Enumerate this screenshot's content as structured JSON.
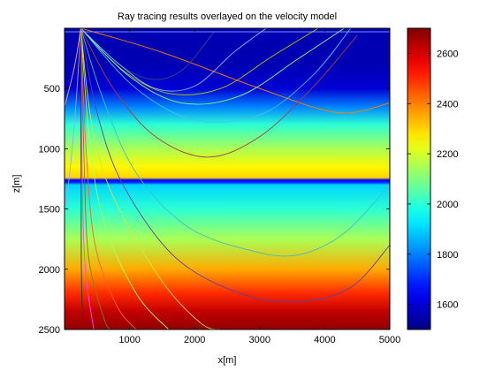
{
  "chart_data": {
    "type": "heatmap",
    "title": "Ray tracing results overlayed on the velocity model",
    "xlabel": "x[m]",
    "ylabel": "z[m]",
    "xlim": [
      0,
      5000
    ],
    "ylim": [
      0,
      2500
    ],
    "y_direction": "down",
    "x_ticks": [
      1000,
      2000,
      3000,
      4000,
      5000
    ],
    "y_ticks": [
      500,
      1000,
      1500,
      2000,
      2500
    ],
    "colorbar": {
      "range": [
        1500,
        2700
      ],
      "ticks": [
        1600,
        1800,
        2000,
        2200,
        2400,
        2600
      ],
      "colormap": "jet",
      "placement": "right"
    },
    "velocity_model": {
      "depth_m": [
        0,
        300,
        500,
        650,
        800,
        1000,
        1150,
        1240,
        1260,
        1280,
        1300,
        1500,
        1750,
        2000,
        2200,
        2350,
        2500
      ],
      "velocity_mps": [
        1560,
        1560,
        1600,
        1800,
        2000,
        2150,
        2260,
        2300,
        1650,
        1700,
        1900,
        2000,
        2150,
        2350,
        2500,
        2620,
        2680
      ]
    },
    "source": {
      "x": 250,
      "z": 0
    },
    "rays": [
      {
        "color": "#ff8000",
        "points": [
          [
            250,
            0
          ],
          [
            1500,
            200
          ],
          [
            3000,
            500
          ],
          [
            4200,
            700
          ],
          [
            5000,
            620
          ]
        ]
      },
      {
        "color": "#404080",
        "points": [
          [
            250,
            0
          ],
          [
            700,
            250
          ],
          [
            1300,
            420
          ],
          [
            1800,
            350
          ],
          [
            2300,
            30
          ]
        ]
      },
      {
        "color": "#80c0ff",
        "points": [
          [
            250,
            0
          ],
          [
            800,
            280
          ],
          [
            1400,
            500
          ],
          [
            2000,
            480
          ],
          [
            2600,
            200
          ],
          [
            3100,
            0
          ]
        ]
      },
      {
        "color": "#c0c000",
        "points": [
          [
            250,
            0
          ],
          [
            900,
            350
          ],
          [
            1600,
            540
          ],
          [
            2400,
            500
          ],
          [
            3200,
            230
          ],
          [
            3900,
            0
          ]
        ]
      },
      {
        "color": "#80ff80",
        "points": [
          [
            250,
            0
          ],
          [
            1000,
            400
          ],
          [
            1800,
            620
          ],
          [
            2700,
            560
          ],
          [
            3600,
            250
          ],
          [
            4300,
            0
          ]
        ]
      },
      {
        "color": "#40c0ff",
        "points": [
          [
            250,
            0
          ],
          [
            1100,
            500
          ],
          [
            2000,
            760
          ],
          [
            3000,
            720
          ],
          [
            3800,
            400
          ],
          [
            4400,
            0
          ]
        ]
      },
      {
        "color": "#a04040",
        "points": [
          [
            250,
            0
          ],
          [
            750,
            500
          ],
          [
            1400,
            900
          ],
          [
            2200,
            1070
          ],
          [
            3000,
            900
          ],
          [
            3800,
            500
          ],
          [
            4500,
            60
          ]
        ]
      },
      {
        "color": "#40c0c0",
        "points": [
          [
            250,
            0
          ],
          [
            600,
            600
          ],
          [
            1100,
            1200
          ],
          [
            1900,
            1650
          ],
          [
            2900,
            1850
          ],
          [
            3600,
            1880
          ],
          [
            4300,
            1700
          ],
          [
            5000,
            1300
          ]
        ]
      },
      {
        "color": "#6040a0",
        "points": [
          [
            250,
            0
          ],
          [
            500,
            700
          ],
          [
            900,
            1300
          ],
          [
            1700,
            1900
          ],
          [
            2700,
            2200
          ],
          [
            3600,
            2270
          ],
          [
            4400,
            2150
          ],
          [
            5000,
            1800
          ]
        ]
      },
      {
        "color": "#e0e040",
        "points": [
          [
            250,
            0
          ],
          [
            420,
            800
          ],
          [
            750,
            1400
          ],
          [
            1500,
            2100
          ],
          [
            2100,
            2450
          ],
          [
            2400,
            2500
          ]
        ]
      },
      {
        "color": "#b0ff60",
        "points": [
          [
            250,
            0
          ],
          [
            380,
            900
          ],
          [
            600,
            1600
          ],
          [
            1100,
            2200
          ],
          [
            1600,
            2500
          ]
        ]
      },
      {
        "color": "#ff6030",
        "points": [
          [
            250,
            0
          ],
          [
            330,
            1000
          ],
          [
            470,
            1800
          ],
          [
            800,
            2300
          ],
          [
            1100,
            2500
          ]
        ]
      },
      {
        "color": "#808000",
        "points": [
          [
            250,
            0
          ],
          [
            300,
            1100
          ],
          [
            370,
            1900
          ],
          [
            600,
            2400
          ],
          [
            700,
            2500
          ]
        ]
      },
      {
        "color": "#ff40ff",
        "points": [
          [
            250,
            0
          ],
          [
            270,
            1200
          ],
          [
            320,
            2000
          ],
          [
            450,
            2500
          ]
        ]
      },
      {
        "color": "#204020",
        "points": [
          [
            250,
            0
          ],
          [
            255,
            1300
          ],
          [
            260,
            2000
          ],
          [
            280,
            2500
          ]
        ]
      },
      {
        "color": "#a0a0ff",
        "points": [
          [
            250,
            0
          ],
          [
            180,
            600
          ],
          [
            80,
            1200
          ],
          [
            0,
            1500
          ]
        ]
      },
      {
        "color": "#ffa0a0",
        "points": [
          [
            250,
            0
          ],
          [
            160,
            300
          ],
          [
            50,
            550
          ],
          [
            0,
            650
          ]
        ]
      }
    ]
  }
}
